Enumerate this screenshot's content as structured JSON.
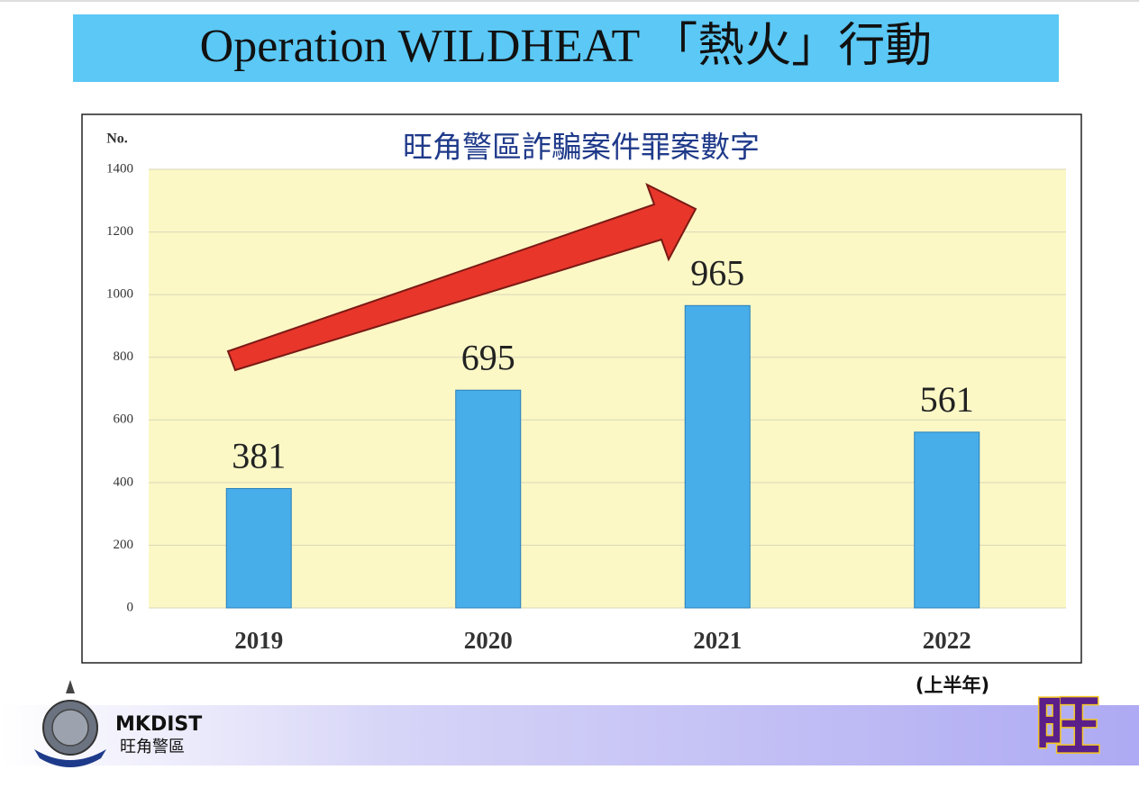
{
  "header": {
    "title": "Operation WILDHEAT 「熱火」行動"
  },
  "chart_data": {
    "type": "bar",
    "title": "旺角警區詐騙案件罪案數字",
    "y_label": "No.",
    "categories": [
      "2019",
      "2020",
      "2021",
      "2022"
    ],
    "values": [
      381,
      695,
      965,
      561
    ],
    "color": "#48aeea",
    "ylim": [
      0,
      1400
    ],
    "yticks": [
      0,
      200,
      400,
      600,
      800,
      1000,
      1200,
      1400
    ],
    "grid": true,
    "annotation": "(上半年)"
  },
  "footer": {
    "code": "MKDIST",
    "name": "旺角警區",
    "logo_char": "旺"
  }
}
